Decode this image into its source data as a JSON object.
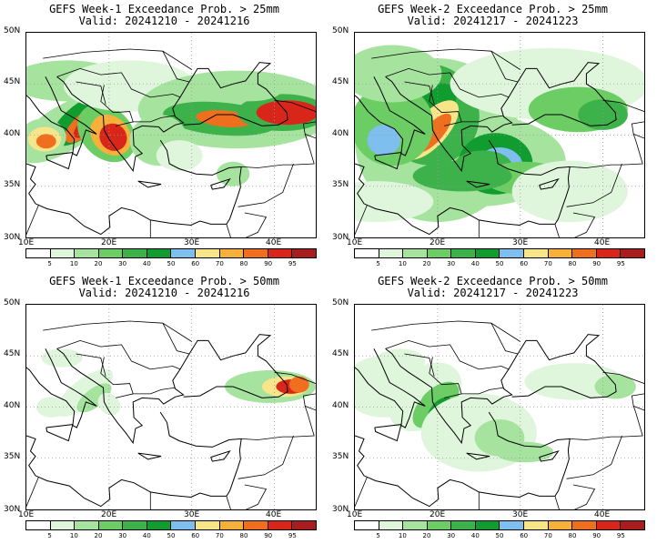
{
  "panels": [
    {
      "title": "GEFS Week-1 Exceedance Prob. > 25mm",
      "valid": "Valid: 20241210 - 20241216",
      "variant": "w1_25"
    },
    {
      "title": "GEFS Week-2 Exceedance Prob. > 25mm",
      "valid": "Valid: 20241217 - 20241223",
      "variant": "w2_25"
    },
    {
      "title": "GEFS Week-1 Exceedance Prob. > 50mm",
      "valid": "Valid: 20241210 - 20241216",
      "variant": "w1_50"
    },
    {
      "title": "GEFS Week-2 Exceedance Prob. > 50mm",
      "valid": "Valid: 20241217 - 20241223",
      "variant": "w2_50"
    }
  ],
  "lat_labels": [
    "50N",
    "45N",
    "40N",
    "35N",
    "30N"
  ],
  "lon_labels": [
    "10E",
    "20E",
    "30E",
    "40E"
  ],
  "colorbar": {
    "colors": [
      "#ffffff",
      "#dff5dc",
      "#a6e39f",
      "#6bcd64",
      "#3db24a",
      "#109c2e",
      "#7fbfef",
      "#f7e58a",
      "#f7b13a",
      "#ef6f1f",
      "#d8271a",
      "#a81e1e"
    ],
    "labels": [
      "5",
      "10",
      "20",
      "30",
      "40",
      "50",
      "60",
      "70",
      "80",
      "90",
      "95"
    ]
  }
}
